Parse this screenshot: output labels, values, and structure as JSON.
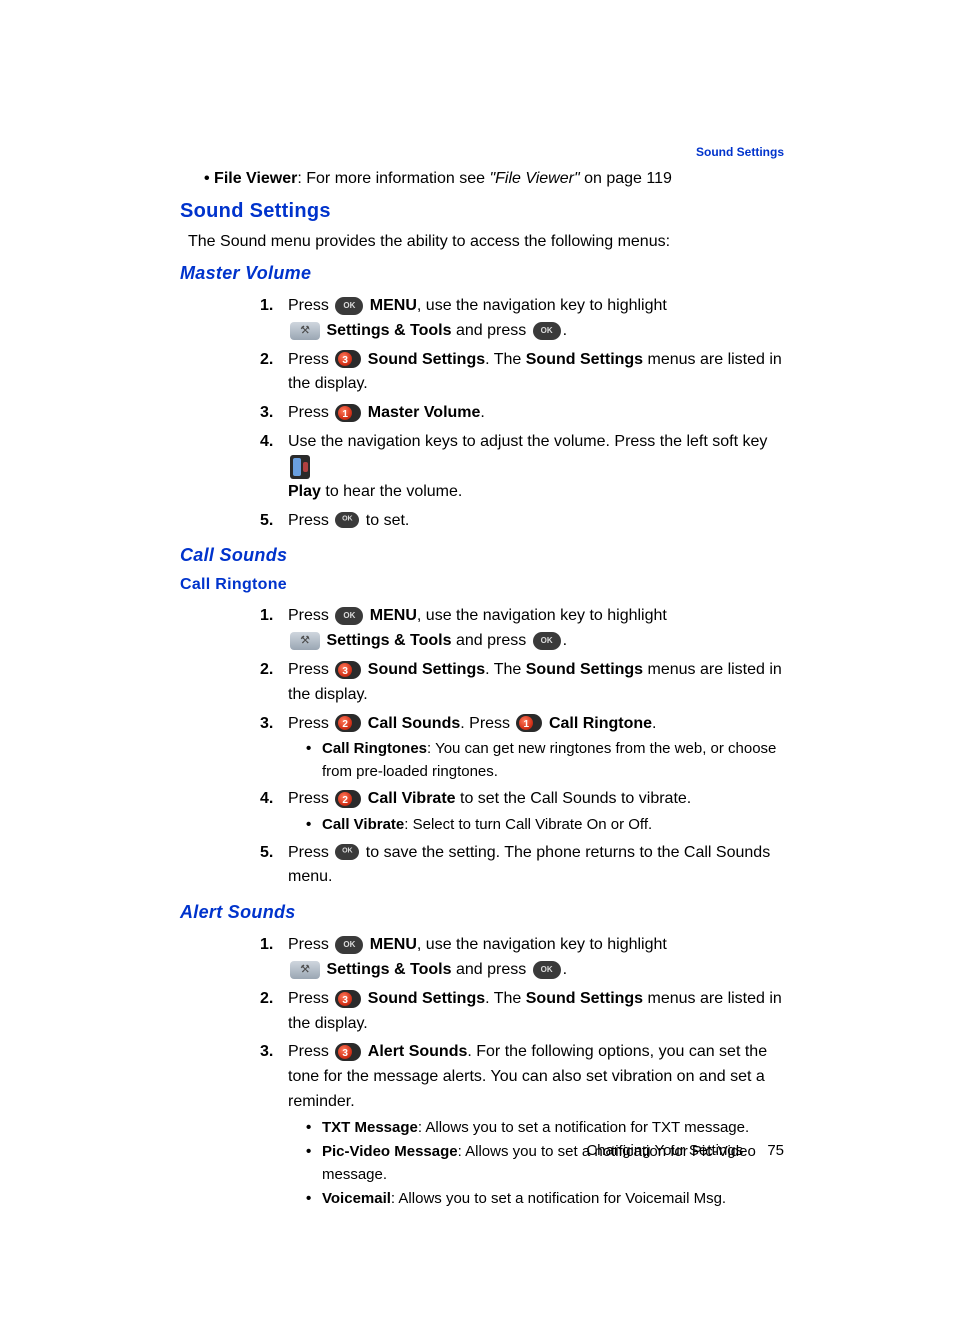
{
  "header": {
    "section_label": "Sound Settings"
  },
  "top_bullet": {
    "label_bold": "File Viewer",
    "text": ": For more information see ",
    "ref_italic": "\"File Viewer\"",
    "tail": "  on page 119"
  },
  "h1": "Sound Settings",
  "intro": "The Sound menu provides the ability to access the following menus:",
  "master_volume": {
    "title": "Master Volume",
    "steps": {
      "s1_1": "Press ",
      "s1_menu": "MENU",
      "s1_2": ", use the navigation key to highlight ",
      "s1_tools": "Settings & Tools",
      "s1_3": " and press ",
      "s1_4": ".",
      "s2_1": "Press ",
      "s2_ss": "Sound Settings",
      "s2_2": ". The ",
      "s2_ss2": "Sound Settings",
      "s2_3": " menus are listed in the display.",
      "s3_1": "Press ",
      "s3_mv": "Master Volume",
      "s3_2": ".",
      "s4_1": "Use the navigation keys to adjust the volume. Press the left soft key ",
      "s4_play": "Play",
      "s4_2": " to hear the volume.",
      "s5_1": "Press ",
      "s5_2": " to set."
    }
  },
  "call_sounds": {
    "title": "Call Sounds",
    "subtitle": "Call Ringtone",
    "steps": {
      "s1_1": "Press ",
      "s1_menu": "MENU",
      "s1_2": ", use the navigation key to highlight ",
      "s1_tools": "Settings & Tools",
      "s1_3": " and press ",
      "s1_4": ".",
      "s2_1": "Press ",
      "s2_ss": "Sound Settings",
      "s2_2": ". The ",
      "s2_ss2": "Sound Settings",
      "s2_3": " menus are listed in the display.",
      "s3_1": "Press ",
      "s3_cs": "Call Sounds",
      "s3_2": ". Press ",
      "s3_cr": "Call Ringtone",
      "s3_3": ".",
      "s3_sub_b": "Call Ringtones",
      "s3_sub_t": ": You can get new ringtones from the web, or choose from pre-loaded ringtones.",
      "s4_1": "Press ",
      "s4_cv": "Call Vibrate",
      "s4_2": " to set the Call Sounds to vibrate.",
      "s4_sub_b": "Call Vibrate",
      "s4_sub_t": ": Select to turn Call Vibrate On or Off.",
      "s5_1": "Press ",
      "s5_2": " to save the setting. The phone returns to the Call Sounds menu."
    }
  },
  "alert_sounds": {
    "title": "Alert Sounds",
    "steps": {
      "s1_1": "Press ",
      "s1_menu": "MENU",
      "s1_2": ", use the navigation key to highlight ",
      "s1_tools": "Settings & Tools",
      "s1_3": " and press ",
      "s1_4": ".",
      "s2_1": "Press ",
      "s2_ss": "Sound Settings",
      "s2_2": ". The ",
      "s2_ss2": "Sound Settings",
      "s2_3": " menus are listed in the display.",
      "s3_1": "Press ",
      "s3_as": "Alert Sounds",
      "s3_2": ". For the following options, you can set the tone for the message alerts. You can also set vibration on and set a reminder.",
      "sub1_b": "TXT Message",
      "sub1_t": ": Allows you to set a notification for TXT message.",
      "sub2_b": "Pic-Video Message",
      "sub2_t": ": Allows you to set a notification for Pic-Video message.",
      "sub3_b": "Voicemail",
      "sub3_t": ": Allows you to set a notification for Voicemail Msg."
    }
  },
  "footer": {
    "chapter": "Changing Your Settings",
    "page": "75"
  }
}
